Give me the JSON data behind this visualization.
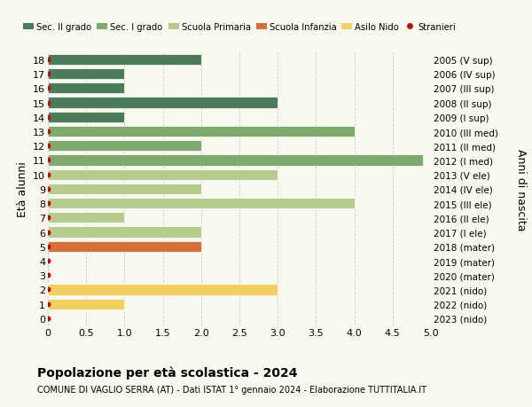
{
  "ages": [
    18,
    17,
    16,
    15,
    14,
    13,
    12,
    11,
    10,
    9,
    8,
    7,
    6,
    5,
    4,
    3,
    2,
    1,
    0
  ],
  "right_labels": [
    "2005 (V sup)",
    "2006 (IV sup)",
    "2007 (III sup)",
    "2008 (II sup)",
    "2009 (I sup)",
    "2010 (III med)",
    "2011 (II med)",
    "2012 (I med)",
    "2013 (V ele)",
    "2014 (IV ele)",
    "2015 (III ele)",
    "2016 (II ele)",
    "2017 (I ele)",
    "2018 (mater)",
    "2019 (mater)",
    "2020 (mater)",
    "2021 (nido)",
    "2022 (nido)",
    "2023 (nido)"
  ],
  "bar_values": [
    2,
    1,
    1,
    3,
    1,
    4,
    2,
    4.9,
    3,
    2,
    4,
    1,
    2,
    2,
    0,
    0,
    3,
    1,
    0
  ],
  "bar_colors": [
    "#4a7c59",
    "#4a7c59",
    "#4a7c59",
    "#4a7c59",
    "#4a7c59",
    "#7dab6e",
    "#7dab6e",
    "#7dab6e",
    "#b5cc8e",
    "#b5cc8e",
    "#b5cc8e",
    "#b5cc8e",
    "#b5cc8e",
    "#d4703a",
    "#d4703a",
    "#d4703a",
    "#f0d060",
    "#f0d060",
    "#f0d060"
  ],
  "stranieri_dots": [
    18,
    17,
    16,
    15,
    14,
    13,
    12,
    11,
    10,
    9,
    8,
    7,
    6,
    5,
    4,
    3,
    2,
    1,
    0
  ],
  "legend_labels": [
    "Sec. II grado",
    "Sec. I grado",
    "Scuola Primaria",
    "Scuola Infanzia",
    "Asilo Nido",
    "Stranieri"
  ],
  "legend_colors": [
    "#4a7c59",
    "#7dab6e",
    "#b5cc8e",
    "#d4703a",
    "#f0d060",
    "#cc0000"
  ],
  "title": "Popolazione per età scolastica - 2024",
  "subtitle": "COMUNE DI VAGLIO SERRA (AT) - Dati ISTAT 1° gennaio 2024 - Elaborazione TUTTITALIA.IT",
  "ylabel_left": "Età alunni",
  "ylabel_right": "Anni di nascita",
  "xlim": [
    0,
    5.0
  ],
  "xticks": [
    0,
    0.5,
    1.0,
    1.5,
    2.0,
    2.5,
    3.0,
    3.5,
    4.0,
    4.5,
    5.0
  ],
  "xtick_labels": [
    "0",
    "0.5",
    "1.0",
    "1.5",
    "2.0",
    "2.5",
    "3.0",
    "3.5",
    "4.0",
    "4.5",
    "5.0"
  ],
  "background_color": "#f9f9f0",
  "grid_color": "#d0d0d0",
  "bar_edge_color": "white",
  "dot_color": "#cc0000",
  "dot_size": 18,
  "bar_height": 0.75
}
